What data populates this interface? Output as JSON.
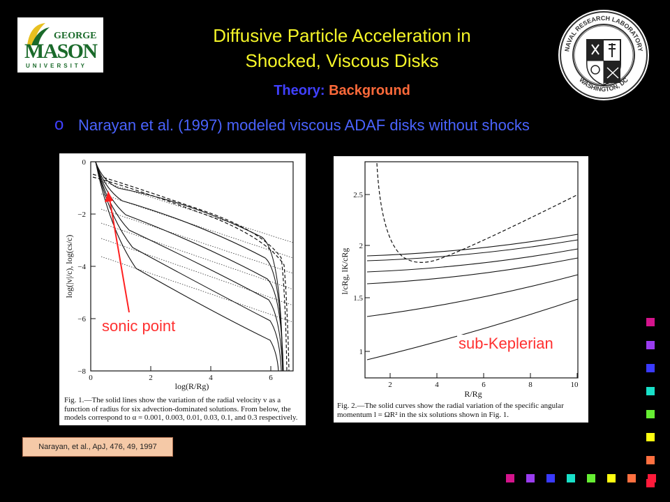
{
  "header": {
    "title_line1": "Diffusive Particle Acceleration in",
    "title_line2": "Shocked, Viscous Disks",
    "subtitle_part1": "Theory: ",
    "subtitle_part2": "Background"
  },
  "logos": {
    "left": {
      "name": "George Mason University",
      "text_top": "GEORGE",
      "text_main": "MASON",
      "text_bottom": "UNIVERSITY"
    },
    "right": {
      "name": "Naval Research Laboratory seal",
      "ring_top": "NAVAL RESEARCH LABORATORY",
      "ring_bottom": "WASHINGTON, DC"
    }
  },
  "bullet": {
    "marker": "o",
    "text": "Narayan et al. (1997) modeled viscous ADAF disks without shocks"
  },
  "figure1": {
    "y_axis_label": "log(|v|/c), log(cs/c)",
    "x_axis_label": "log(R/Rg)",
    "x_ticks": [
      "0",
      "2",
      "4",
      "6"
    ],
    "y_ticks": [
      "0",
      "−2",
      "−4",
      "−6",
      "−8"
    ],
    "caption_lead": "Fig. 1.",
    "caption": "—The solid lines show the variation of the radial velocity v as a function of radius for six advection-dominated solutions. From below, the models correspond to α = 0.001, 0.003, 0.01, 0.03, 0.1, and 0.3 respectively.",
    "annotation": "sonic point"
  },
  "figure2": {
    "y_axis_label": "l/cRg, lK/cRg",
    "x_axis_label": "R/Rg",
    "x_ticks": [
      "2",
      "4",
      "6",
      "8",
      "10"
    ],
    "y_ticks": [
      "1",
      "1.5",
      "2",
      "2.5"
    ],
    "caption_lead": "Fig. 2.",
    "caption": "—The solid curves show the radial variation of the specific angular momentum l = ΩR² in the six solutions shown in Fig. 1.",
    "annotation": "sub-Keplerian"
  },
  "reference": "Narayan, et al., ApJ, 476, 49, 1997",
  "colors": {
    "title": "#f5f528",
    "subtitle_part1": "#4040ff",
    "subtitle_part2": "#ff6a3a",
    "bullet_text": "#4a63ff",
    "annotation": "#ff3030",
    "decor_squares": [
      "#d4148c",
      "#9a3cf0",
      "#3a3aff",
      "#18e0c8",
      "#66ee33",
      "#ffff10",
      "#ff7040",
      "#ff1a3a"
    ]
  }
}
